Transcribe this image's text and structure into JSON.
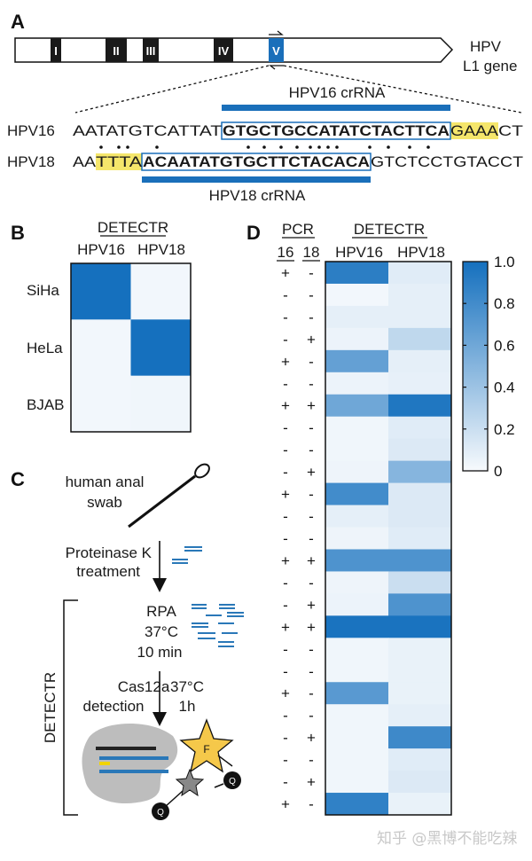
{
  "panel_a": {
    "label": "A",
    "gene_label_line1": "HPV",
    "gene_label_line2": "L1 gene",
    "exons": [
      "I",
      "II",
      "III",
      "IV",
      "V"
    ],
    "highlight_exon": "V",
    "hpv16_crrna_label": "HPV16 crRNA",
    "hpv18_crrna_label": "HPV18 crRNA",
    "hpv16": {
      "name": "HPV16",
      "pre": "AATATGTCATTAT",
      "target": "GTGCTGCCATATCTACTTCA",
      "pam": "GAAA",
      "post": "CT"
    },
    "hpv18": {
      "name": "HPV18",
      "pre": "AA",
      "pam": "TTTA",
      "target": "ACAATATGTGCTTCTACACA",
      "post": "GTCTCCTGTACCT"
    }
  },
  "panel_b": {
    "label": "B",
    "title": "DETECTR",
    "columns": [
      "HPV16",
      "HPV18"
    ],
    "rows": [
      "SiHa",
      "HeLa",
      "BJAB"
    ],
    "values": [
      [
        1.0,
        0.02
      ],
      [
        0.02,
        1.0
      ],
      [
        0.02,
        0.03
      ]
    ]
  },
  "panel_c": {
    "label": "C",
    "sample_line1": "human anal",
    "sample_line2": "swab",
    "step1_line1": "Proteinase K",
    "step1_line2": "treatment",
    "rpa_line1": "RPA",
    "rpa_line2": "37°C",
    "rpa_line3": "10 min",
    "cas_line1": "Cas12a",
    "cas_line2": "detection",
    "cond_line1": "37°C",
    "cond_line2": "1h",
    "bracket_label": "DETECTR",
    "fluor_label": "F",
    "quencher_label": "Q"
  },
  "panel_d": {
    "label": "D",
    "pcr_title": "PCR",
    "pcr_columns": [
      "16",
      "18"
    ],
    "detectr_title": "DETECTR",
    "columns": [
      "HPV16",
      "HPV18"
    ],
    "colorbar_ticks": [
      "1.0",
      "0.8",
      "0.6",
      "0.4",
      "0.2",
      "0"
    ]
  },
  "chart_data": {
    "type": "heatmap",
    "columns": [
      "HPV16",
      "HPV18"
    ],
    "color_range": [
      0,
      1
    ],
    "colormap": [
      "#f7fafd",
      "#1570be"
    ],
    "pcr": [
      [
        "+",
        "-"
      ],
      [
        "-",
        "-"
      ],
      [
        "-",
        "-"
      ],
      [
        "-",
        "+"
      ],
      [
        "+",
        "-"
      ],
      [
        "-",
        "-"
      ],
      [
        "+",
        "+"
      ],
      [
        "-",
        "-"
      ],
      [
        "-",
        "-"
      ],
      [
        "-",
        "+"
      ],
      [
        "+",
        "-"
      ],
      [
        "-",
        "-"
      ],
      [
        "-",
        "-"
      ],
      [
        "+",
        "+"
      ],
      [
        "-",
        "-"
      ],
      [
        "-",
        "+"
      ],
      [
        "+",
        "+"
      ],
      [
        "-",
        "-"
      ],
      [
        "-",
        "-"
      ],
      [
        "+",
        "-"
      ],
      [
        "-",
        "-"
      ],
      [
        "-",
        "+"
      ],
      [
        "-",
        "-"
      ],
      [
        "-",
        "+"
      ],
      [
        "+",
        "-"
      ]
    ],
    "values": [
      [
        0.9,
        0.1
      ],
      [
        0.02,
        0.08
      ],
      [
        0.08,
        0.08
      ],
      [
        0.05,
        0.25
      ],
      [
        0.65,
        0.08
      ],
      [
        0.05,
        0.07
      ],
      [
        0.6,
        0.95
      ],
      [
        0.03,
        0.1
      ],
      [
        0.03,
        0.12
      ],
      [
        0.04,
        0.5
      ],
      [
        0.8,
        0.12
      ],
      [
        0.08,
        0.12
      ],
      [
        0.04,
        0.1
      ],
      [
        0.75,
        0.75
      ],
      [
        0.04,
        0.2
      ],
      [
        0.05,
        0.75
      ],
      [
        0.98,
        0.98
      ],
      [
        0.03,
        0.06
      ],
      [
        0.03,
        0.06
      ],
      [
        0.7,
        0.06
      ],
      [
        0.03,
        0.08
      ],
      [
        0.03,
        0.82
      ],
      [
        0.03,
        0.1
      ],
      [
        0.03,
        0.12
      ],
      [
        0.88,
        0.06
      ]
    ]
  },
  "colors": {
    "accent": "#1a6fba",
    "yellow": "#f5e66b",
    "exon": "#1a1a1a"
  },
  "watermark": "知乎 @黑博不能吃辣"
}
